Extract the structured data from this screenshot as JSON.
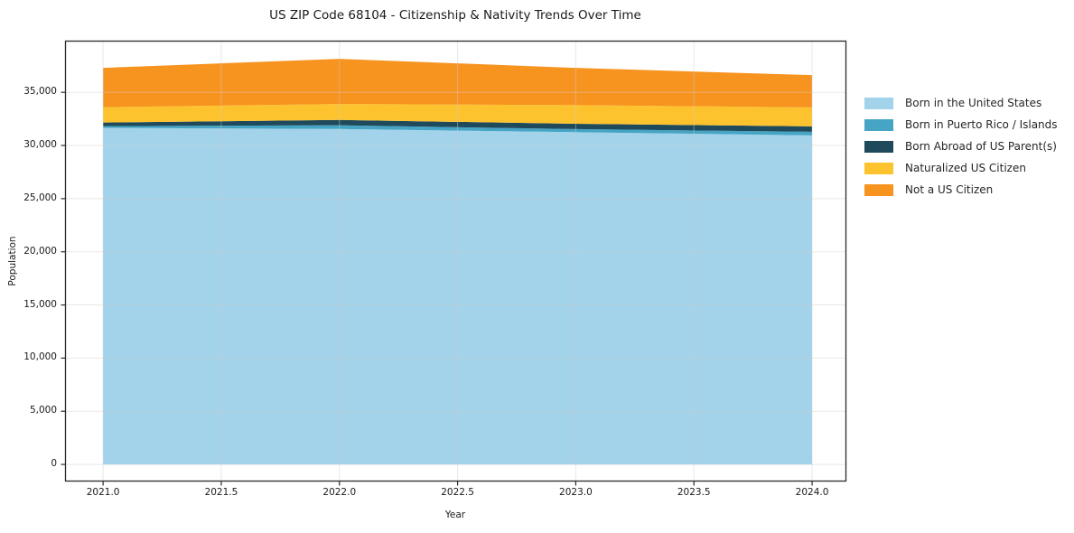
{
  "figure": {
    "title": "US ZIP Code 68104 - Citizenship & Nativity Trends Over Time",
    "xlabel": "Year",
    "ylabel": "Population"
  },
  "chart_data": {
    "type": "area",
    "stacked": true,
    "title": "US ZIP Code 68104 - Citizenship & Nativity Trends Over Time",
    "xlabel": "Year",
    "ylabel": "Population",
    "grid": true,
    "legend_position": "right-outside",
    "x": [
      2021,
      2022,
      2023,
      2024
    ],
    "series": [
      {
        "name": "Born in the United States",
        "color": "#A3D3EA",
        "values": [
          31650,
          31550,
          31250,
          30950
        ]
      },
      {
        "name": "Born in Puerto Rico / Islands",
        "color": "#46A5C5",
        "values": [
          170,
          350,
          290,
          340
        ]
      },
      {
        "name": "Born Abroad of US Parent(s)",
        "color": "#1F4A5C",
        "values": [
          340,
          500,
          500,
          510
        ]
      },
      {
        "name": "Naturalized US Citizen",
        "color": "#FDC32E",
        "values": [
          1440,
          1500,
          1760,
          1780
        ]
      },
      {
        "name": "Not a US Citizen",
        "color": "#F79420",
        "values": [
          3700,
          4250,
          3500,
          3040
        ]
      }
    ],
    "totals": [
      37300,
      38150,
      37300,
      36620
    ],
    "xlim": [
      2020.839,
      2024.145
    ],
    "ylim": [
      -1607,
      39860
    ],
    "x_ticks": [
      {
        "value": 2021.0,
        "label": "2021.0"
      },
      {
        "value": 2021.5,
        "label": "2021.5"
      },
      {
        "value": 2022.0,
        "label": "2022.0"
      },
      {
        "value": 2022.5,
        "label": "2022.5"
      },
      {
        "value": 2023.0,
        "label": "2023.0"
      },
      {
        "value": 2023.5,
        "label": "2023.5"
      },
      {
        "value": 2024.0,
        "label": "2024.0"
      }
    ],
    "y_ticks": [
      {
        "value": 0,
        "label": "0"
      },
      {
        "value": 5000,
        "label": "5,000"
      },
      {
        "value": 10000,
        "label": "10,000"
      },
      {
        "value": 15000,
        "label": "15,000"
      },
      {
        "value": 20000,
        "label": "20,000"
      },
      {
        "value": 25000,
        "label": "25,000"
      },
      {
        "value": 30000,
        "label": "30,000"
      },
      {
        "value": 35000,
        "label": "35,000"
      }
    ],
    "colors": {
      "spine": "#2a2a2a",
      "grid": "#cccccc",
      "text": "#1a1a1a"
    }
  }
}
